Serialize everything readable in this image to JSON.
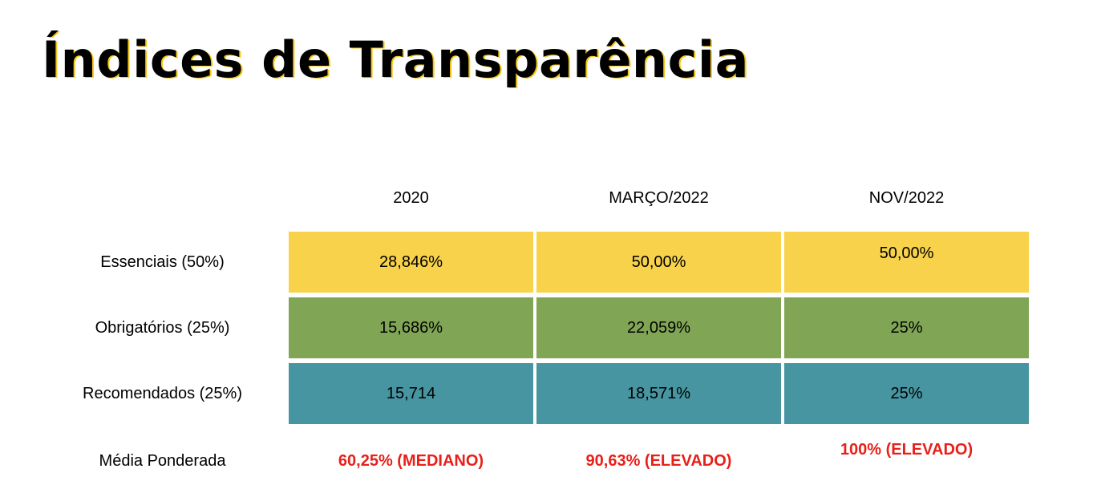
{
  "title": "Índices de Transparência",
  "colors": {
    "essenciais": "#f7d24a",
    "obrigatorios": "#80a555",
    "recomendados": "#4695a1",
    "average_text": "#e8201a",
    "title_shadow": "#f5c518"
  },
  "chart_data": {
    "type": "table",
    "columns": [
      "2020",
      "MARÇO/2022",
      "NOV/2022"
    ],
    "rows": [
      {
        "label": "Essenciais (50%)",
        "values": [
          "28,846%",
          "50,00%",
          "50,00%"
        ]
      },
      {
        "label": "Obrigatórios (25%)",
        "values": [
          "15,686%",
          "22,059%",
          "25%"
        ]
      },
      {
        "label": "Recomendados (25%)",
        "values": [
          "15,714",
          "18,571%",
          "25%"
        ]
      }
    ],
    "weighted_average": {
      "label": "Média Ponderada",
      "values": [
        "60,25% (MEDIANO)",
        "90,63% (ELEVADO)",
        "100% (ELEVADO)"
      ]
    }
  }
}
